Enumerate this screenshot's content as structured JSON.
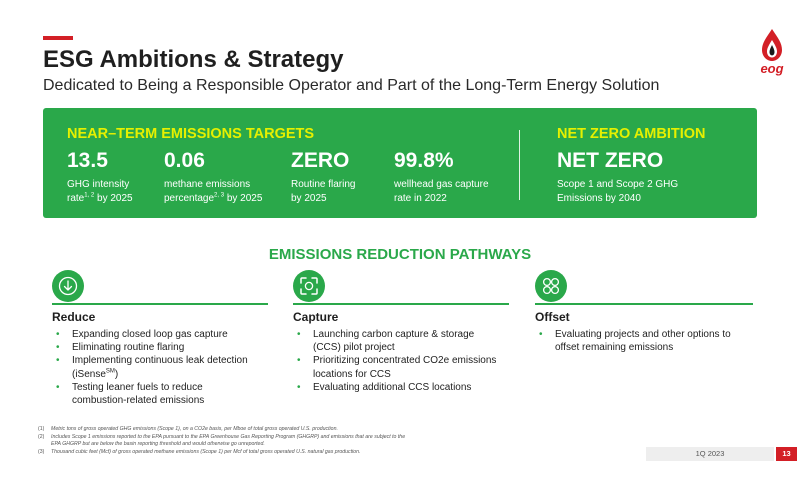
{
  "header": {
    "title": "ESG Ambitions & Strategy",
    "subtitle": "Dedicated to Being a Responsible Operator and Part of the Long-Term Energy Solution"
  },
  "logo": {
    "text": "eog",
    "icon": "flame-drop-logo"
  },
  "near_term": {
    "heading": "NEAR–TERM EMISSIONS TARGETS",
    "stats": [
      {
        "value": "13.5",
        "line1": "GHG intensity",
        "line2_a": "rate",
        "line2_sup": "1, 2",
        "line2_b": " by 2025"
      },
      {
        "value": "0.06",
        "line1": "methane emissions",
        "line2_a": "percentage",
        "line2_sup": "2, 3",
        "line2_b": " by 2025"
      },
      {
        "value": "ZERO",
        "line1": "Routine flaring",
        "line2_a": "by 2025",
        "line2_sup": "",
        "line2_b": ""
      },
      {
        "value": "99.8%",
        "line1": "wellhead gas capture",
        "line2_a": "rate in 2022",
        "line2_sup": "",
        "line2_b": ""
      }
    ]
  },
  "net_zero": {
    "heading": "NET ZERO AMBITION",
    "value": "NET ZERO",
    "line1": "Scope 1 and Scope 2 GHG",
    "line2": "Emissions by 2040"
  },
  "pathways": {
    "title": "EMISSIONS REDUCTION PATHWAYS",
    "columns": [
      {
        "icon": "down-arrow-icon",
        "title": "Reduce",
        "items": [
          "Expanding closed loop gas capture",
          "Eliminating routine flaring",
          "Implementing continuous leak detection",
          "Testing leaner fuels to reduce",
          "combustion-related emissions"
        ],
        "item3_cont_a": "(iSense",
        "item3_cont_sup": "SM",
        "item3_cont_b": ")"
      },
      {
        "icon": "capture-frame-icon",
        "title": "Capture",
        "items": [
          "Launching carbon capture & storage",
          "(CCS) pilot project",
          "Prioritizing concentrated CO2e emissions",
          "locations for CCS",
          "Evaluating additional CCS locations"
        ]
      },
      {
        "icon": "offset-circles-icon",
        "title": "Offset",
        "items": [
          "Evaluating projects and other options to",
          "offset remaining emissions"
        ]
      }
    ]
  },
  "footnotes": [
    {
      "num": "(1)",
      "text": "Metric tons of gross operated GHG emissions (Scope 1), on a CO2e basis, per Mboe of total gross operated U.S. production."
    },
    {
      "num": "(2)",
      "text": "Includes Scope 1 emissions reported to the EPA pursuant to the EPA Greenhouse Gas Reporting Program (GHGRP) and emissions that are subject to the"
    },
    {
      "num": "",
      "text": "EPA GHGRP but are below the basin reporting threshold and would otherwise go unreported."
    },
    {
      "num": "(3)",
      "text": "Thousand cubic feet (Mcf) of gross operated methane emissions (Scope 1) per Mcf of total gross operated U.S. natural gas production."
    }
  ],
  "footer": {
    "date": "1Q 2023",
    "page": "13"
  },
  "colors": {
    "green": "#2aa84a",
    "yellow": "#e6f000",
    "red": "#d31f26"
  }
}
